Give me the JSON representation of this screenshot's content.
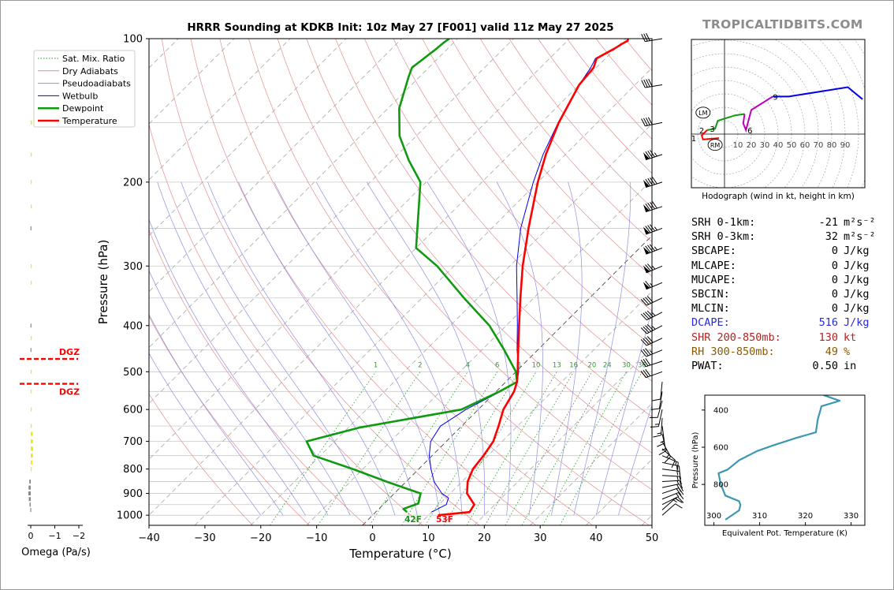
{
  "title": "HRRR Sounding at KDKB Init: 10z May 27 [F001] valid 11z May 27 2025",
  "brand": "TROPICALTIDBITS.COM",
  "skewt": {
    "xlabel": "Temperature (°C)",
    "ylabel": "Pressure (hPa)",
    "xlim": [
      -40,
      50
    ],
    "ylim": [
      1050,
      100
    ],
    "xticks": [
      -40,
      -30,
      -20,
      -10,
      0,
      10,
      20,
      30,
      40,
      50
    ],
    "yticks": [
      100,
      200,
      300,
      400,
      500,
      600,
      700,
      800,
      900,
      1000
    ],
    "legend": [
      "Sat. Mix. Ratio",
      "Dry Adiabats",
      "Pseudoadiabats",
      "Wetbulb",
      "Dewpoint",
      "Temperature"
    ],
    "mixing_ratio_labels": [
      "1",
      "2",
      "4",
      "6",
      "8",
      "10",
      "13",
      "16",
      "20",
      "24",
      "30",
      "36"
    ],
    "surface_dewpoint_label": "42F",
    "surface_temperature_label": "53F",
    "colors": {
      "temperature": "#ff0000",
      "dewpoint": "#109a10",
      "wetbulb": "#0000ee",
      "dry_adiabat": "#e38f8f",
      "pseudoadiabat": "#8f8fe3",
      "mixing_ratio": "#2e9a2e"
    }
  },
  "chart_data": {
    "type": "line",
    "title": "HRRR Sounding at KDKB Init: 10z May 27 [F001] valid 11z May 27 2025",
    "xlabel": "Temperature (°C)",
    "ylabel": "Pressure (hPa)",
    "series": [
      {
        "name": "Temperature",
        "x": [
          11.7,
          16.8,
          16.3,
          13.0,
          11.0,
          9.7,
          9.2,
          8.4,
          6.6,
          4.5,
          3.2,
          2.0,
          0.3,
          -3.5,
          -7.7,
          -12.4,
          -17.7,
          -23.4,
          -30.0,
          -33.5,
          -36.9,
          -40.0,
          -40.5,
          -41.6,
          -40.2,
          -39.5,
          -39.2,
          -39.5
        ],
        "y": [
          1000,
          985,
          950,
          900,
          850,
          800,
          750,
          700,
          650,
          600,
          550,
          525,
          500,
          450,
          400,
          350,
          300,
          250,
          200,
          175,
          150,
          125,
          115,
          110,
          105,
          102,
          101,
          100
        ]
      },
      {
        "name": "Dewpoint",
        "x": [
          5.6,
          4.4,
          6.1,
          4.7,
          -3.5,
          -11.8,
          -21.2,
          -25.0,
          -18.1,
          -3.0,
          0.6,
          2.0,
          0.0,
          -6.0,
          -13.0,
          -22.5,
          -33.0,
          -40.0,
          -51.0,
          -57.0,
          -63.0,
          -68.0,
          -72.0,
          -73.0,
          -72.5,
          -72.0,
          -71.8,
          -71.5
        ],
        "y": [
          985,
          970,
          945,
          900,
          850,
          800,
          750,
          700,
          655,
          600,
          550,
          525,
          500,
          450,
          400,
          350,
          300,
          275,
          200,
          180,
          160,
          140,
          120,
          115,
          110,
          105,
          102,
          100
        ]
      },
      {
        "name": "Wetbulb",
        "x": [
          10.0,
          11.3,
          10.5,
          8.5,
          5.0,
          2.2,
          -0.5,
          -2.8,
          -3.8,
          -2.2,
          0.8,
          2.0,
          0.5,
          -3.7,
          -8.0,
          -13.0,
          -18.8,
          -24.8,
          -30.8,
          -34.0,
          -37.0,
          -40.0,
          -41.0,
          -41.8,
          -40.3,
          -39.6,
          -39.3,
          -39.6
        ],
        "y": [
          985,
          950,
          920,
          900,
          850,
          800,
          750,
          700,
          650,
          600,
          550,
          525,
          500,
          450,
          400,
          350,
          300,
          250,
          200,
          175,
          150,
          125,
          115,
          110,
          105,
          102,
          101,
          100
        ]
      }
    ],
    "xlim": [
      -40,
      50
    ],
    "ylim": [
      1050,
      100
    ]
  },
  "omega": {
    "xlabel": "Omega (Pa/s)",
    "ticks": [
      "0",
      "−1",
      "−2"
    ],
    "dgz_label": "DGZ",
    "dgz_bounds_hpa": [
      470,
      530
    ],
    "bars": [
      {
        "p": 150,
        "v": 0.05,
        "c": "#f3e800"
      },
      {
        "p": 175,
        "v": 0.04,
        "c": "#f3e800"
      },
      {
        "p": 200,
        "v": 0.03,
        "c": "#f3e800"
      },
      {
        "p": 225,
        "v": 0.02,
        "c": "#f3e800"
      },
      {
        "p": 250,
        "v": -0.01,
        "c": "#888888"
      },
      {
        "p": 300,
        "v": 0.02,
        "c": "#f3e800"
      },
      {
        "p": 325,
        "v": 0.02,
        "c": "#f3e800"
      },
      {
        "p": 400,
        "v": -0.01,
        "c": "#888888"
      },
      {
        "p": 425,
        "v": 0.01,
        "c": "#f3e800"
      },
      {
        "p": 450,
        "v": -0.01,
        "c": "#888888"
      },
      {
        "p": 500,
        "v": 0.01,
        "c": "#f3e800"
      },
      {
        "p": 550,
        "v": 0.02,
        "c": "#f3e800"
      },
      {
        "p": 600,
        "v": 0.02,
        "c": "#f3e800"
      },
      {
        "p": 650,
        "v": 0.03,
        "c": "#f3e800"
      },
      {
        "p": 675,
        "v": 0.08,
        "c": "#f3e800"
      },
      {
        "p": 700,
        "v": 0.09,
        "c": "#f3e800"
      },
      {
        "p": 725,
        "v": 0.1,
        "c": "#f3e800"
      },
      {
        "p": 750,
        "v": 0.09,
        "c": "#f3e800"
      },
      {
        "p": 775,
        "v": 0.06,
        "c": "#f3e800"
      },
      {
        "p": 800,
        "v": 0.04,
        "c": "#f3e800"
      },
      {
        "p": 850,
        "v": -0.06,
        "c": "#888888"
      },
      {
        "p": 875,
        "v": -0.09,
        "c": "#888888"
      },
      {
        "p": 900,
        "v": -0.1,
        "c": "#888888"
      },
      {
        "p": 925,
        "v": -0.08,
        "c": "#888888"
      },
      {
        "p": 950,
        "v": -0.05,
        "c": "#888888"
      },
      {
        "p": 975,
        "v": -0.02,
        "c": "#888888"
      }
    ]
  },
  "hodograph": {
    "caption": "Hodograph (wind in kt, height in km)",
    "ring_labels": [
      "10",
      "20",
      "30",
      "40",
      "50",
      "60",
      "70",
      "80",
      "90"
    ],
    "storm_motion_labels": [
      "LM",
      "RM"
    ],
    "height_labels": [
      "1",
      "2",
      "3",
      "6",
      "9"
    ],
    "segments": [
      {
        "color": "#ff0000",
        "pts": [
          [
            -4,
            -3
          ],
          [
            -16,
            -4
          ],
          [
            -17,
            -1
          ],
          [
            -13,
            3
          ]
        ]
      },
      {
        "color": "#109a10",
        "pts": [
          [
            -13,
            3
          ],
          [
            -7,
            4
          ],
          [
            -5,
            10
          ],
          [
            8,
            14
          ],
          [
            15,
            15
          ]
        ]
      },
      {
        "color": "#bb00bb",
        "pts": [
          [
            15,
            15
          ],
          [
            14,
            8
          ],
          [
            16,
            3
          ],
          [
            20,
            18
          ],
          [
            36,
            28
          ]
        ]
      },
      {
        "color": "#0000ee",
        "pts": [
          [
            36,
            28
          ],
          [
            48,
            28
          ],
          [
            92,
            35
          ],
          [
            103,
            26
          ]
        ]
      }
    ]
  },
  "stats": [
    {
      "label": "SRH 0-1km:",
      "value": "-21",
      "unit": "m²s⁻²",
      "color": "#000000"
    },
    {
      "label": "SRH 0-3km:",
      "value": "32",
      "unit": "m²s⁻²",
      "color": "#000000"
    },
    {
      "label": "SBCAPE:",
      "value": "0",
      "unit": "J/kg",
      "color": "#000000"
    },
    {
      "label": "MLCAPE:",
      "value": "0",
      "unit": "J/kg",
      "color": "#000000"
    },
    {
      "label": "MUCAPE:",
      "value": "0",
      "unit": "J/kg",
      "color": "#000000"
    },
    {
      "label": "SBCIN:",
      "value": "0",
      "unit": "J/kg",
      "color": "#000000"
    },
    {
      "label": "MLCIN:",
      "value": "0",
      "unit": "J/kg",
      "color": "#000000"
    },
    {
      "label": "DCAPE:",
      "value": "516",
      "unit": "J/kg",
      "color": "#2a2adb"
    },
    {
      "label": "SHR 200-850mb:",
      "value": "130",
      "unit": "kt",
      "color": "#b22222"
    },
    {
      "label": "RH 300-850mb:",
      "value": "49",
      "unit": "%",
      "color": "#8b5a00"
    },
    {
      "label": "PWAT:",
      "value": "0.50",
      "unit": "in",
      "color": "#000000"
    }
  ],
  "theta_e": {
    "xlabel": "Equivalent Pot. Temperature (K)",
    "ylabel": "Pressure (hPa)",
    "xticks": [
      300,
      310,
      320,
      330
    ],
    "yticks": [
      400,
      600,
      800
    ],
    "xlim": [
      298,
      333
    ],
    "ylim": [
      1020,
      320
    ],
    "color": "#3a98b3",
    "x": [
      324,
      327.5,
      323.5,
      323.3,
      322.7,
      322.3,
      318,
      313,
      309.5,
      305.5,
      303,
      301,
      301.5,
      302.5,
      305.5,
      305.8,
      305.5,
      302.5
    ],
    "y": [
      320,
      350,
      380,
      400,
      450,
      520,
      550,
      590,
      620,
      670,
      720,
      740,
      800,
      860,
      890,
      910,
      940,
      990
    ]
  },
  "wind_barbs": [
    {
      "p": 1000,
      "u": -8,
      "v": -7
    },
    {
      "p": 975,
      "u": -10,
      "v": -9
    },
    {
      "p": 950,
      "u": -12,
      "v": -6
    },
    {
      "p": 925,
      "u": -15,
      "v": -6
    },
    {
      "p": 900,
      "u": -18,
      "v": -6
    },
    {
      "p": 875,
      "u": -19,
      "v": -4
    },
    {
      "p": 850,
      "u": -17,
      "v": -1
    },
    {
      "p": 825,
      "u": -17,
      "v": 1
    },
    {
      "p": 800,
      "u": -15,
      "v": 2
    },
    {
      "p": 775,
      "u": -14,
      "v": 3
    },
    {
      "p": 750,
      "u": -12,
      "v": 5
    },
    {
      "p": 725,
      "u": -9,
      "v": 8
    },
    {
      "p": 700,
      "u": -6,
      "v": 11
    },
    {
      "p": 675,
      "u": -3,
      "v": 13
    },
    {
      "p": 650,
      "u": -2,
      "v": 15
    },
    {
      "p": 625,
      "u": 1,
      "v": 15
    },
    {
      "p": 600,
      "u": 3,
      "v": 14
    },
    {
      "p": 575,
      "u": 3,
      "v": 11
    },
    {
      "p": 550,
      "u": 2,
      "v": 12
    },
    {
      "p": 525,
      "u": 1,
      "v": 10
    },
    {
      "p": 500,
      "u": 28,
      "v": 10
    },
    {
      "p": 475,
      "u": 30,
      "v": 10
    },
    {
      "p": 450,
      "u": 34,
      "v": 14
    },
    {
      "p": 425,
      "u": 38,
      "v": 18
    },
    {
      "p": 400,
      "u": 42,
      "v": 22
    },
    {
      "p": 375,
      "u": 40,
      "v": 20
    },
    {
      "p": 350,
      "u": 38,
      "v": 18
    },
    {
      "p": 325,
      "u": 60,
      "v": 25
    },
    {
      "p": 300,
      "u": 70,
      "v": 30
    },
    {
      "p": 275,
      "u": 78,
      "v": 30
    },
    {
      "p": 250,
      "u": 82,
      "v": 30
    },
    {
      "p": 225,
      "u": 85,
      "v": 28
    },
    {
      "p": 200,
      "u": 88,
      "v": 28
    },
    {
      "p": 175,
      "u": 80,
      "v": 26
    },
    {
      "p": 150,
      "u": 40,
      "v": 8
    },
    {
      "p": 125,
      "u": 38,
      "v": 6
    },
    {
      "p": 100,
      "u": 30,
      "v": 5
    }
  ]
}
